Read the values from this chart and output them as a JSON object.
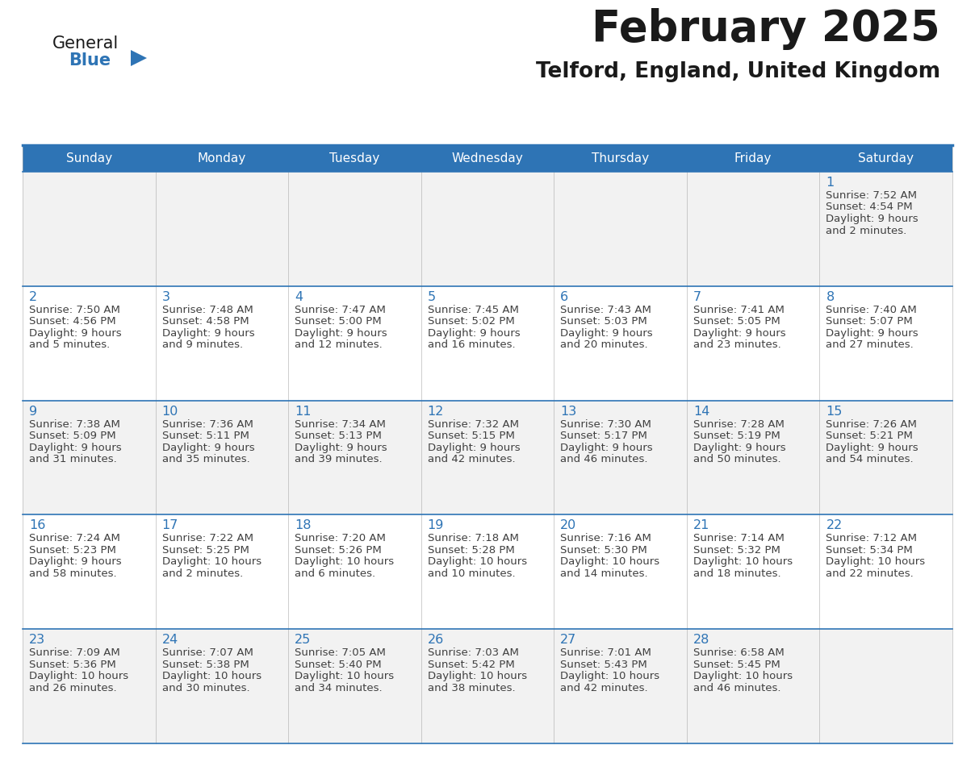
{
  "title": "February 2025",
  "subtitle": "Telford, England, United Kingdom",
  "days_of_week": [
    "Sunday",
    "Monday",
    "Tuesday",
    "Wednesday",
    "Thursday",
    "Friday",
    "Saturday"
  ],
  "header_bg": "#2E74B5",
  "header_text": "#FFFFFF",
  "row_bg_odd": "#F2F2F2",
  "row_bg_even": "#FFFFFF",
  "border_color_thick": "#2E74B5",
  "border_color_thin": "#2E74B5",
  "day_num_color": "#2E74B5",
  "cell_text_color": "#404040",
  "title_color": "#1A1A1A",
  "subtitle_color": "#1A1A1A",
  "logo_general_color": "#1A1A1A",
  "logo_blue_color": "#2E74B5",
  "calendar": [
    [
      null,
      null,
      null,
      null,
      null,
      null,
      {
        "day": 1,
        "sunrise": "7:52 AM",
        "sunset": "4:54 PM",
        "daylight": "9 hours and 2 minutes."
      }
    ],
    [
      {
        "day": 2,
        "sunrise": "7:50 AM",
        "sunset": "4:56 PM",
        "daylight": "9 hours and 5 minutes."
      },
      {
        "day": 3,
        "sunrise": "7:48 AM",
        "sunset": "4:58 PM",
        "daylight": "9 hours and 9 minutes."
      },
      {
        "day": 4,
        "sunrise": "7:47 AM",
        "sunset": "5:00 PM",
        "daylight": "9 hours and 12 minutes."
      },
      {
        "day": 5,
        "sunrise": "7:45 AM",
        "sunset": "5:02 PM",
        "daylight": "9 hours and 16 minutes."
      },
      {
        "day": 6,
        "sunrise": "7:43 AM",
        "sunset": "5:03 PM",
        "daylight": "9 hours and 20 minutes."
      },
      {
        "day": 7,
        "sunrise": "7:41 AM",
        "sunset": "5:05 PM",
        "daylight": "9 hours and 23 minutes."
      },
      {
        "day": 8,
        "sunrise": "7:40 AM",
        "sunset": "5:07 PM",
        "daylight": "9 hours and 27 minutes."
      }
    ],
    [
      {
        "day": 9,
        "sunrise": "7:38 AM",
        "sunset": "5:09 PM",
        "daylight": "9 hours and 31 minutes."
      },
      {
        "day": 10,
        "sunrise": "7:36 AM",
        "sunset": "5:11 PM",
        "daylight": "9 hours and 35 minutes."
      },
      {
        "day": 11,
        "sunrise": "7:34 AM",
        "sunset": "5:13 PM",
        "daylight": "9 hours and 39 minutes."
      },
      {
        "day": 12,
        "sunrise": "7:32 AM",
        "sunset": "5:15 PM",
        "daylight": "9 hours and 42 minutes."
      },
      {
        "day": 13,
        "sunrise": "7:30 AM",
        "sunset": "5:17 PM",
        "daylight": "9 hours and 46 minutes."
      },
      {
        "day": 14,
        "sunrise": "7:28 AM",
        "sunset": "5:19 PM",
        "daylight": "9 hours and 50 minutes."
      },
      {
        "day": 15,
        "sunrise": "7:26 AM",
        "sunset": "5:21 PM",
        "daylight": "9 hours and 54 minutes."
      }
    ],
    [
      {
        "day": 16,
        "sunrise": "7:24 AM",
        "sunset": "5:23 PM",
        "daylight": "9 hours and 58 minutes."
      },
      {
        "day": 17,
        "sunrise": "7:22 AM",
        "sunset": "5:25 PM",
        "daylight": "10 hours and 2 minutes."
      },
      {
        "day": 18,
        "sunrise": "7:20 AM",
        "sunset": "5:26 PM",
        "daylight": "10 hours and 6 minutes."
      },
      {
        "day": 19,
        "sunrise": "7:18 AM",
        "sunset": "5:28 PM",
        "daylight": "10 hours and 10 minutes."
      },
      {
        "day": 20,
        "sunrise": "7:16 AM",
        "sunset": "5:30 PM",
        "daylight": "10 hours and 14 minutes."
      },
      {
        "day": 21,
        "sunrise": "7:14 AM",
        "sunset": "5:32 PM",
        "daylight": "10 hours and 18 minutes."
      },
      {
        "day": 22,
        "sunrise": "7:12 AM",
        "sunset": "5:34 PM",
        "daylight": "10 hours and 22 minutes."
      }
    ],
    [
      {
        "day": 23,
        "sunrise": "7:09 AM",
        "sunset": "5:36 PM",
        "daylight": "10 hours and 26 minutes."
      },
      {
        "day": 24,
        "sunrise": "7:07 AM",
        "sunset": "5:38 PM",
        "daylight": "10 hours and 30 minutes."
      },
      {
        "day": 25,
        "sunrise": "7:05 AM",
        "sunset": "5:40 PM",
        "daylight": "10 hours and 34 minutes."
      },
      {
        "day": 26,
        "sunrise": "7:03 AM",
        "sunset": "5:42 PM",
        "daylight": "10 hours and 38 minutes."
      },
      {
        "day": 27,
        "sunrise": "7:01 AM",
        "sunset": "5:43 PM",
        "daylight": "10 hours and 42 minutes."
      },
      {
        "day": 28,
        "sunrise": "6:58 AM",
        "sunset": "5:45 PM",
        "daylight": "10 hours and 46 minutes."
      },
      null
    ]
  ]
}
